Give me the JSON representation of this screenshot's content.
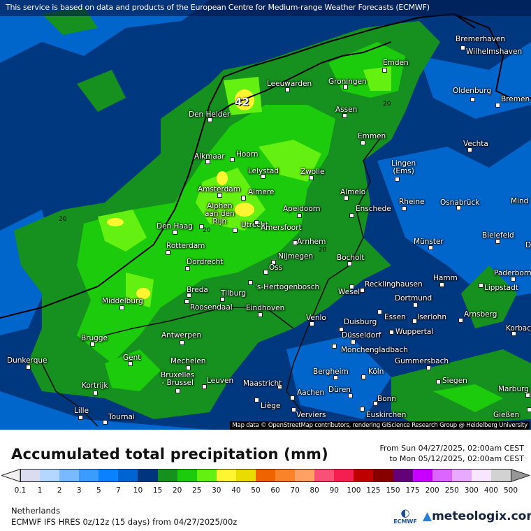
{
  "header": {
    "notice": "This service is based on data and products of the European Centre for Medium-range Weather Forecasts (ECMWF)"
  },
  "map": {
    "attribution": "Map data © OpenStreetMap contributors, rendering GIScience Research Group @ Heidelberg University",
    "max_value_label": "42",
    "contour_labels": [
      "20",
      "20",
      "20",
      "20"
    ],
    "cities": [
      "Bremerhaven",
      "Wilhelmshaven",
      "Emden",
      "Oldenburg",
      "Bremen",
      "Leeuwarden",
      "Groningen",
      "Den Helder",
      "Assen",
      "Emmen",
      "Vechta",
      "Alkmaar",
      "Hoorn",
      "Lingen\n(Ems)",
      "Lelystad",
      "Zwolle",
      "Amsterdam",
      "Almere",
      "Almelo",
      "Mind",
      "Rheine",
      "Osnabrück",
      "Alphen\naan den\nRijn",
      "Apeldoorn",
      "Enschede",
      "Den Haag",
      "Utrecht",
      "Amersfoort",
      "Bielefeld",
      "Arnhem",
      "Münster",
      "D",
      "Rotterdam",
      "Nijmegen",
      "Bocholt",
      "Dordrecht",
      "Oss",
      "Recklinghausen",
      "Hamm",
      "Paderborn",
      "Lippstadt",
      "Breda",
      "'s-Hertogenbosch",
      "Tilburg",
      "Wesel",
      "Middelburg",
      "Roosendaal",
      "Eindhoven",
      "Dortmund",
      "Venlo",
      "Duisburg",
      "Essen",
      "Iserlohn",
      "Arnsberg",
      "Korbach",
      "Wuppertal",
      "Düsseldorf",
      "Brugge",
      "Antwerpen",
      "Mönchengladbach",
      "Dunkerque",
      "Gent",
      "Mechelen",
      "Gummersbach",
      "Bergheim",
      "Köln",
      "Kortrijk",
      "Bruxelles\n- Brussel",
      "Leuven",
      "Maastricht",
      "Siegen",
      "Düren",
      "Marburg",
      "Aachen",
      "Bonn",
      "Lille",
      "Tournai",
      "Liège",
      "Verviers",
      "Euskirchen",
      "Gießen"
    ]
  },
  "title": "Accumulated total precipitation (mm)",
  "period": {
    "from": "From Sun 04/27/2025, 02:00am CEST",
    "to": "to Mon 05/12/2025, 02:00am CEST"
  },
  "legend": {
    "unit": "mm",
    "ticks": [
      "0.1",
      "1",
      "2",
      "3",
      "5",
      "7",
      "10",
      "15",
      "20",
      "25",
      "30",
      "40",
      "50",
      "60",
      "70",
      "80",
      "90",
      "100",
      "125",
      "150",
      "175",
      "200",
      "250",
      "300",
      "400",
      "500"
    ],
    "colors": [
      "#dcdcf0",
      "#b4d7ff",
      "#78b9ff",
      "#3c9bff",
      "#0a82ff",
      "#0064d2",
      "#00347d",
      "#16901e",
      "#1ccc0c",
      "#64f010",
      "#fff530",
      "#e8dc00",
      "#f06400",
      "#fa8228",
      "#ffa064",
      "#fa5078",
      "#f51e50",
      "#be0000",
      "#870000",
      "#640078",
      "#c800ff",
      "#dc64ff",
      "#e8aaff",
      "#f8e6ff",
      "#d2d2d2"
    ],
    "under_color": "#f0f0f0",
    "over_color": "#969696"
  },
  "footer": {
    "region": "Netherlands",
    "model": "ECMWF IFS HRES 0z/12z (15 days) from  04/27/2025/00z",
    "ecmwf_logo": "ECMWF",
    "brand": "meteologix.com"
  }
}
